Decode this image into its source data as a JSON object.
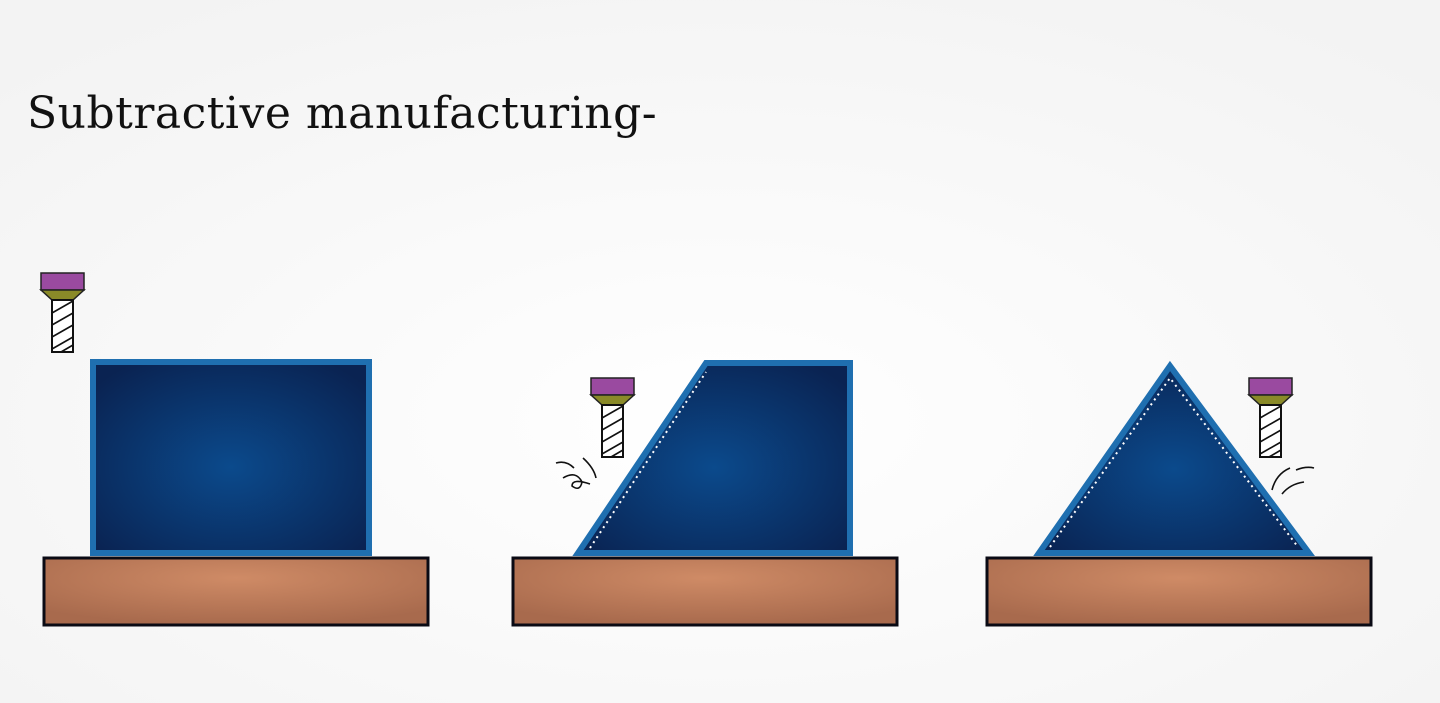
{
  "title": "Subtractive manufacturing-",
  "colors": {
    "workpiece_fill": "#0b4a8c",
    "workpiece_edge": "#0a2352",
    "workpiece_outline": "#1f6fb0",
    "base_fill": "#b8785a",
    "tool_cap": "#9a4aa0",
    "tool_collar": "#8a8a28"
  },
  "stages": [
    {
      "shape": "rectangle",
      "tool": "milling-tool"
    },
    {
      "shape": "trapezoid",
      "tool": "milling-tool",
      "chips": true
    },
    {
      "shape": "triangle",
      "tool": "milling-tool",
      "chips": true
    }
  ]
}
